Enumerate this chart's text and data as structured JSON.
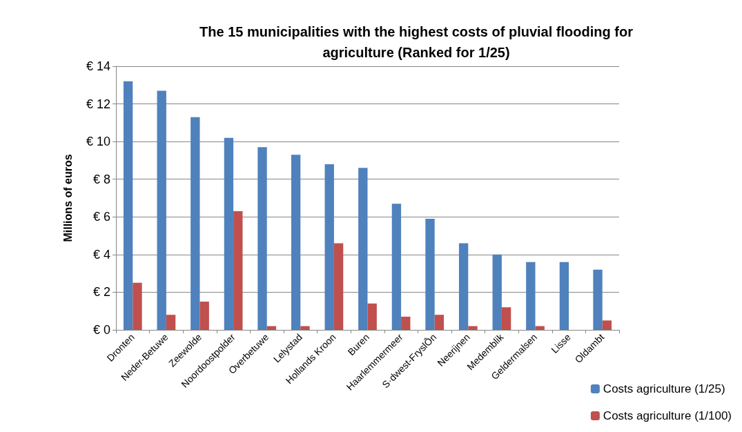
{
  "chart_data": {
    "type": "bar",
    "title": "The 15 municipalities with the highest costs of pluvial flooding for\nagriculture (Ranked for 1/25)",
    "ylabel": "Millions of euros",
    "categories": [
      "Dronten",
      "Neder-Betuwe",
      "Zeewolde",
      "Noordoostpolder",
      "Overbetuwe",
      "Lelystad",
      "Hollands Kroon",
      "Buren",
      "Haarlemmermeer",
      "S·dwest-FryslÔn",
      "Neerijnen",
      "Medemblik",
      "Geldermalsen",
      "Lisse",
      "Oldambt"
    ],
    "series": [
      {
        "name": "Costs agriculture (1/25)",
        "color": "#4f81bd",
        "values": [
          13.2,
          12.7,
          11.3,
          10.2,
          9.7,
          9.3,
          8.8,
          8.6,
          6.7,
          5.9,
          4.6,
          4.0,
          3.6,
          3.6,
          3.2
        ]
      },
      {
        "name": "Costs agriculture (1/100)",
        "color": "#c0504d",
        "values": [
          2.5,
          0.8,
          1.5,
          6.3,
          0.2,
          0.2,
          4.6,
          1.4,
          0.7,
          0.8,
          0.2,
          1.2,
          0.2,
          0,
          0.5
        ]
      }
    ],
    "ylim": [
      0,
      14
    ],
    "yticks": [
      {
        "value": 0,
        "label": "€ 0"
      },
      {
        "value": 2,
        "label": "€ 2"
      },
      {
        "value": 4,
        "label": "€ 4"
      },
      {
        "value": 6,
        "label": "€ 6"
      },
      {
        "value": 8,
        "label": "€ 8"
      },
      {
        "value": 10,
        "label": "€ 10"
      },
      {
        "value": 12,
        "label": "€ 12"
      },
      {
        "value": 14,
        "label": "€ 14"
      }
    ],
    "grid": "y",
    "legend": "bottom right"
  }
}
